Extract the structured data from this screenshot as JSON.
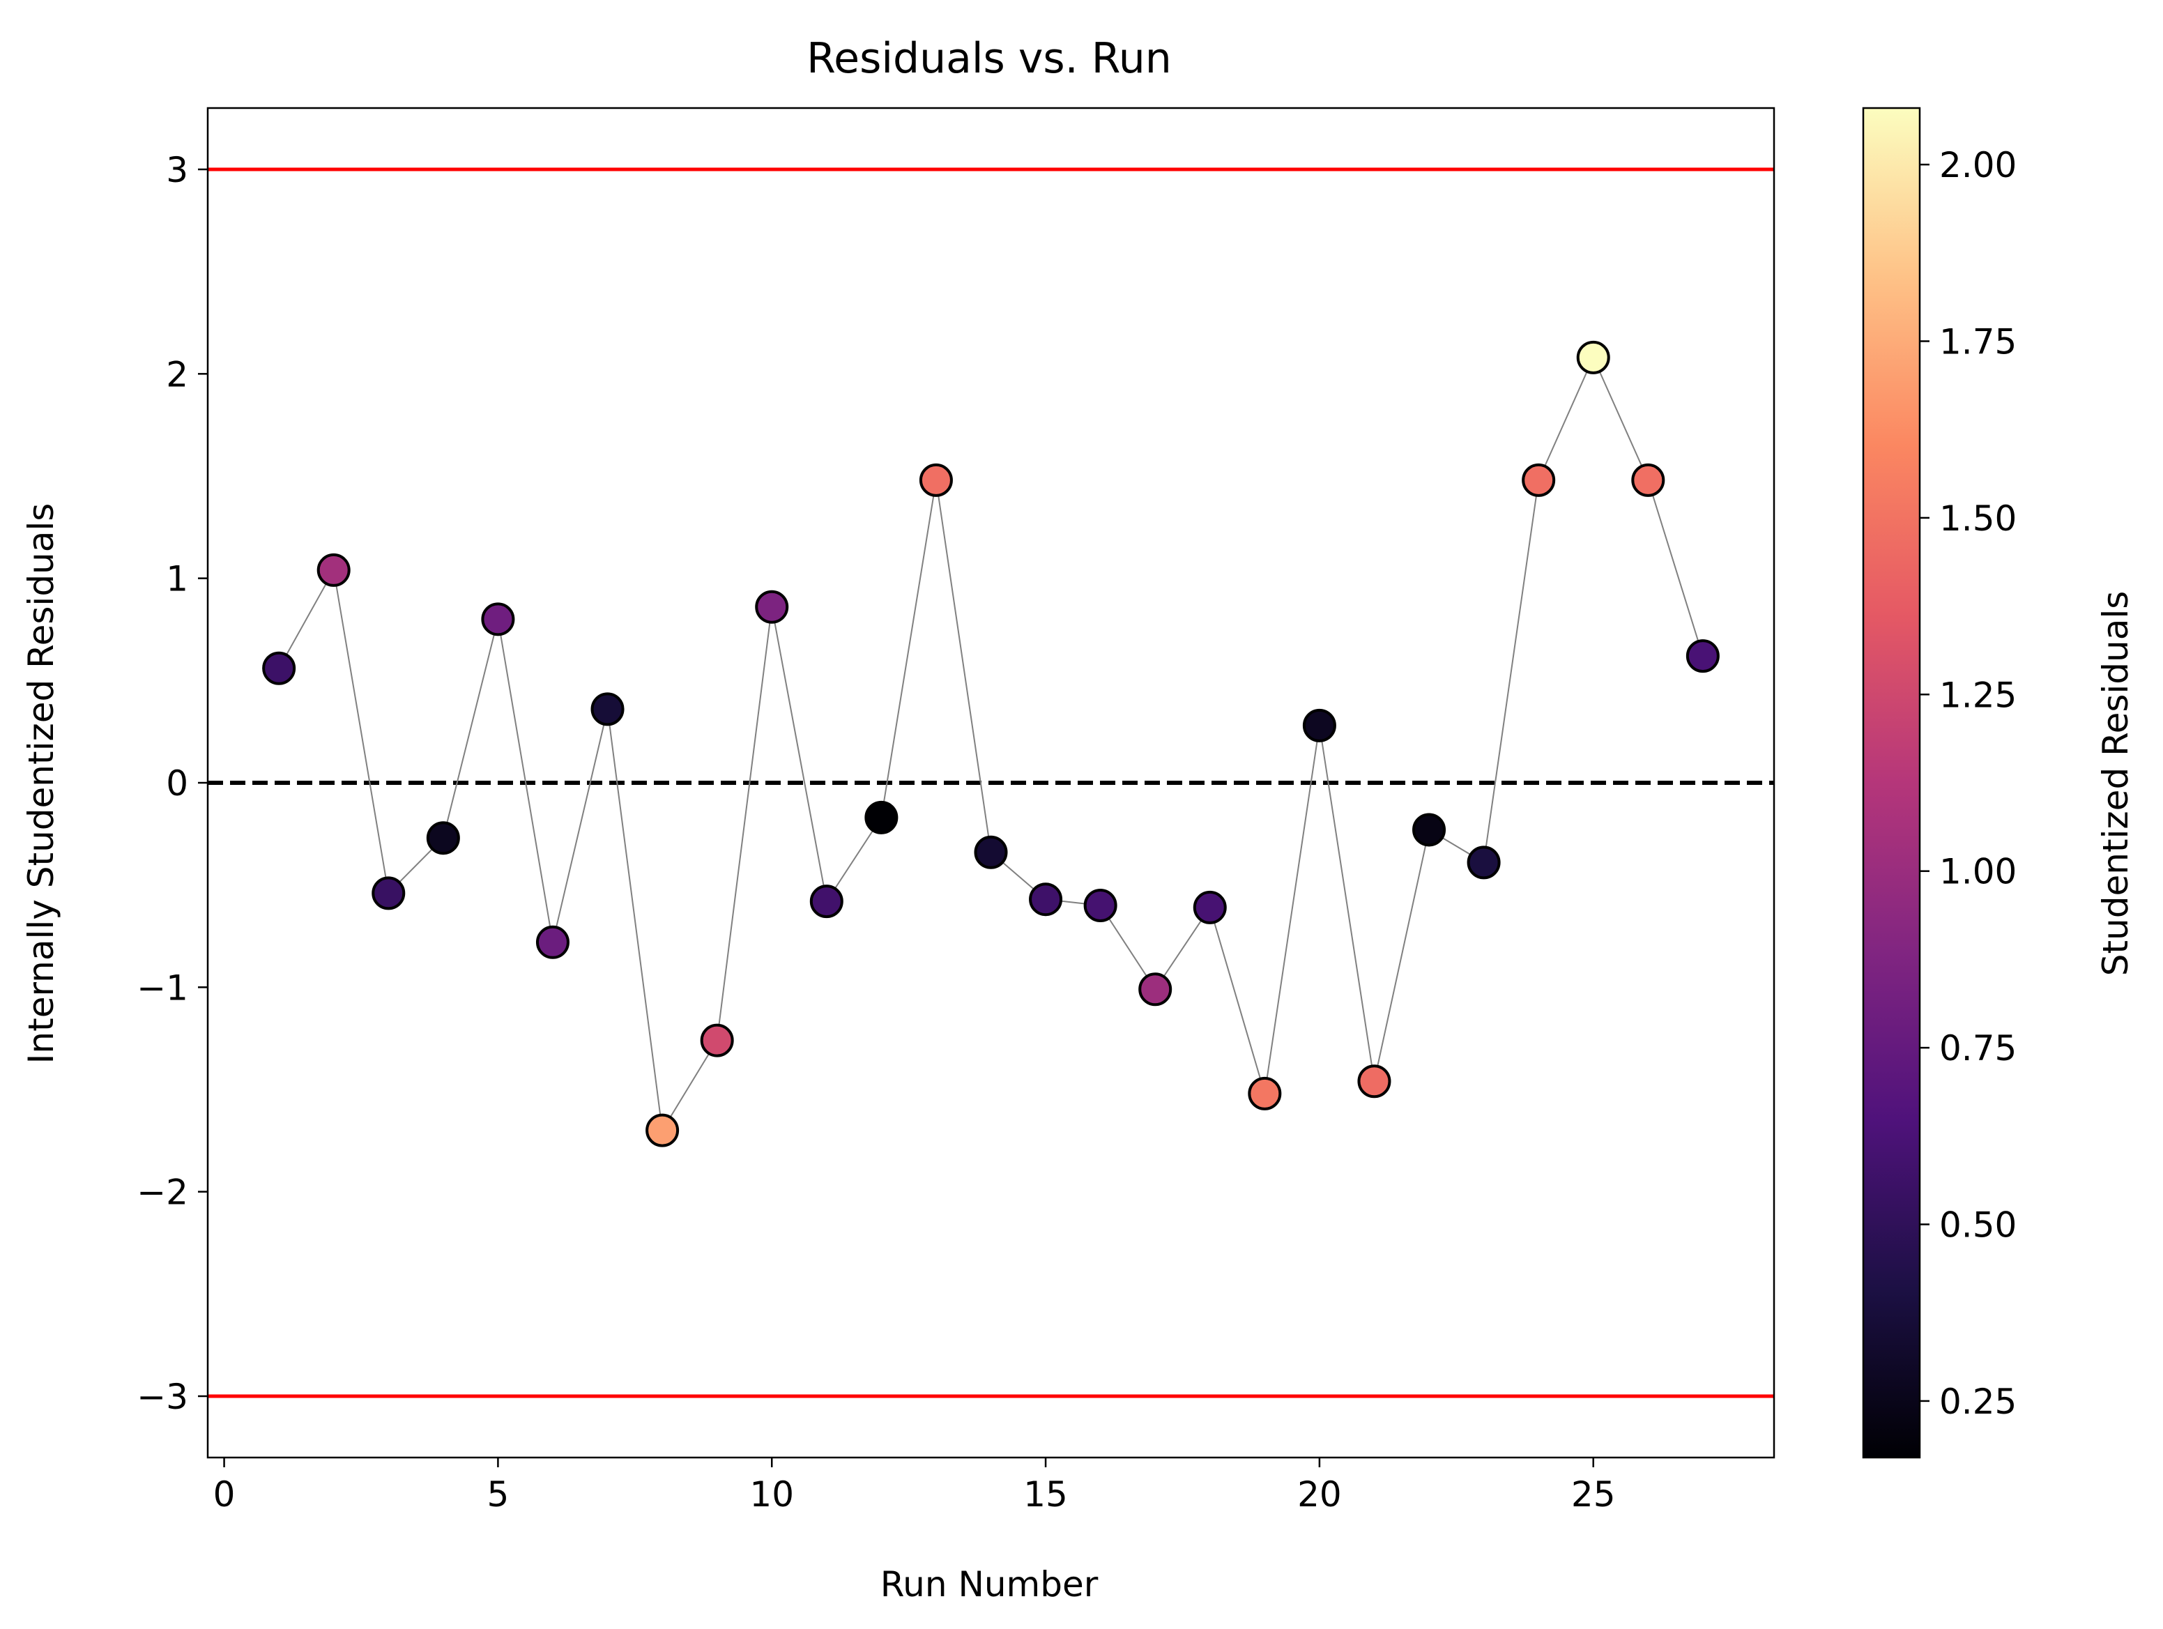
{
  "chart_data": {
    "type": "scatter",
    "title": "Residuals vs. Run",
    "xlabel": "Run Number",
    "ylabel": "Internally Studentized Residuals",
    "xlim": [
      -0.3,
      28.3
    ],
    "ylim": [
      -3.3,
      3.3
    ],
    "xticks": [
      0,
      5,
      10,
      15,
      20,
      25
    ],
    "xtick_labels": [
      "0",
      "5",
      "10",
      "15",
      "20",
      "25"
    ],
    "yticks": [
      -3,
      -2,
      -1,
      0,
      1,
      2,
      3
    ],
    "ytick_labels": [
      "−3",
      "−2",
      "−1",
      "0",
      "1",
      "2",
      "3"
    ],
    "grid": false,
    "x": [
      1,
      2,
      3,
      4,
      5,
      6,
      7,
      8,
      9,
      10,
      11,
      12,
      13,
      14,
      15,
      16,
      17,
      18,
      19,
      20,
      21,
      22,
      23,
      24,
      25,
      26,
      27
    ],
    "y": [
      0.56,
      1.04,
      -0.54,
      -0.27,
      0.8,
      -0.78,
      0.36,
      -1.7,
      -1.26,
      0.86,
      -0.58,
      -0.17,
      1.48,
      -0.34,
      -0.57,
      -0.6,
      -1.01,
      -0.61,
      -1.52,
      0.28,
      -1.46,
      -0.23,
      -0.39,
      1.48,
      2.08,
      1.48,
      0.62
    ],
    "color_values": [
      0.56,
      1.04,
      0.54,
      0.27,
      0.8,
      0.78,
      0.36,
      1.7,
      1.26,
      0.86,
      0.58,
      0.17,
      1.48,
      0.34,
      0.57,
      0.6,
      1.01,
      0.61,
      1.52,
      0.28,
      1.46,
      0.23,
      0.39,
      1.48,
      2.08,
      1.48,
      0.62
    ],
    "connecting_line_color": "#808080",
    "reference_lines": [
      {
        "y": 3,
        "color": "#ff0000",
        "style": "solid"
      },
      {
        "y": -3,
        "color": "#ff0000",
        "style": "solid"
      },
      {
        "y": 0,
        "color": "#000000",
        "style": "dashed"
      }
    ],
    "colorbar": {
      "label": "Studentized Residuals",
      "colormap": "magma",
      "range": [
        0.17,
        2.08
      ],
      "ticks": [
        0.25,
        0.5,
        0.75,
        1.0,
        1.25,
        1.5,
        1.75,
        2.0
      ],
      "tick_labels": [
        "0.25",
        "0.50",
        "0.75",
        "1.00",
        "1.25",
        "1.50",
        "1.75",
        "2.00"
      ]
    }
  }
}
